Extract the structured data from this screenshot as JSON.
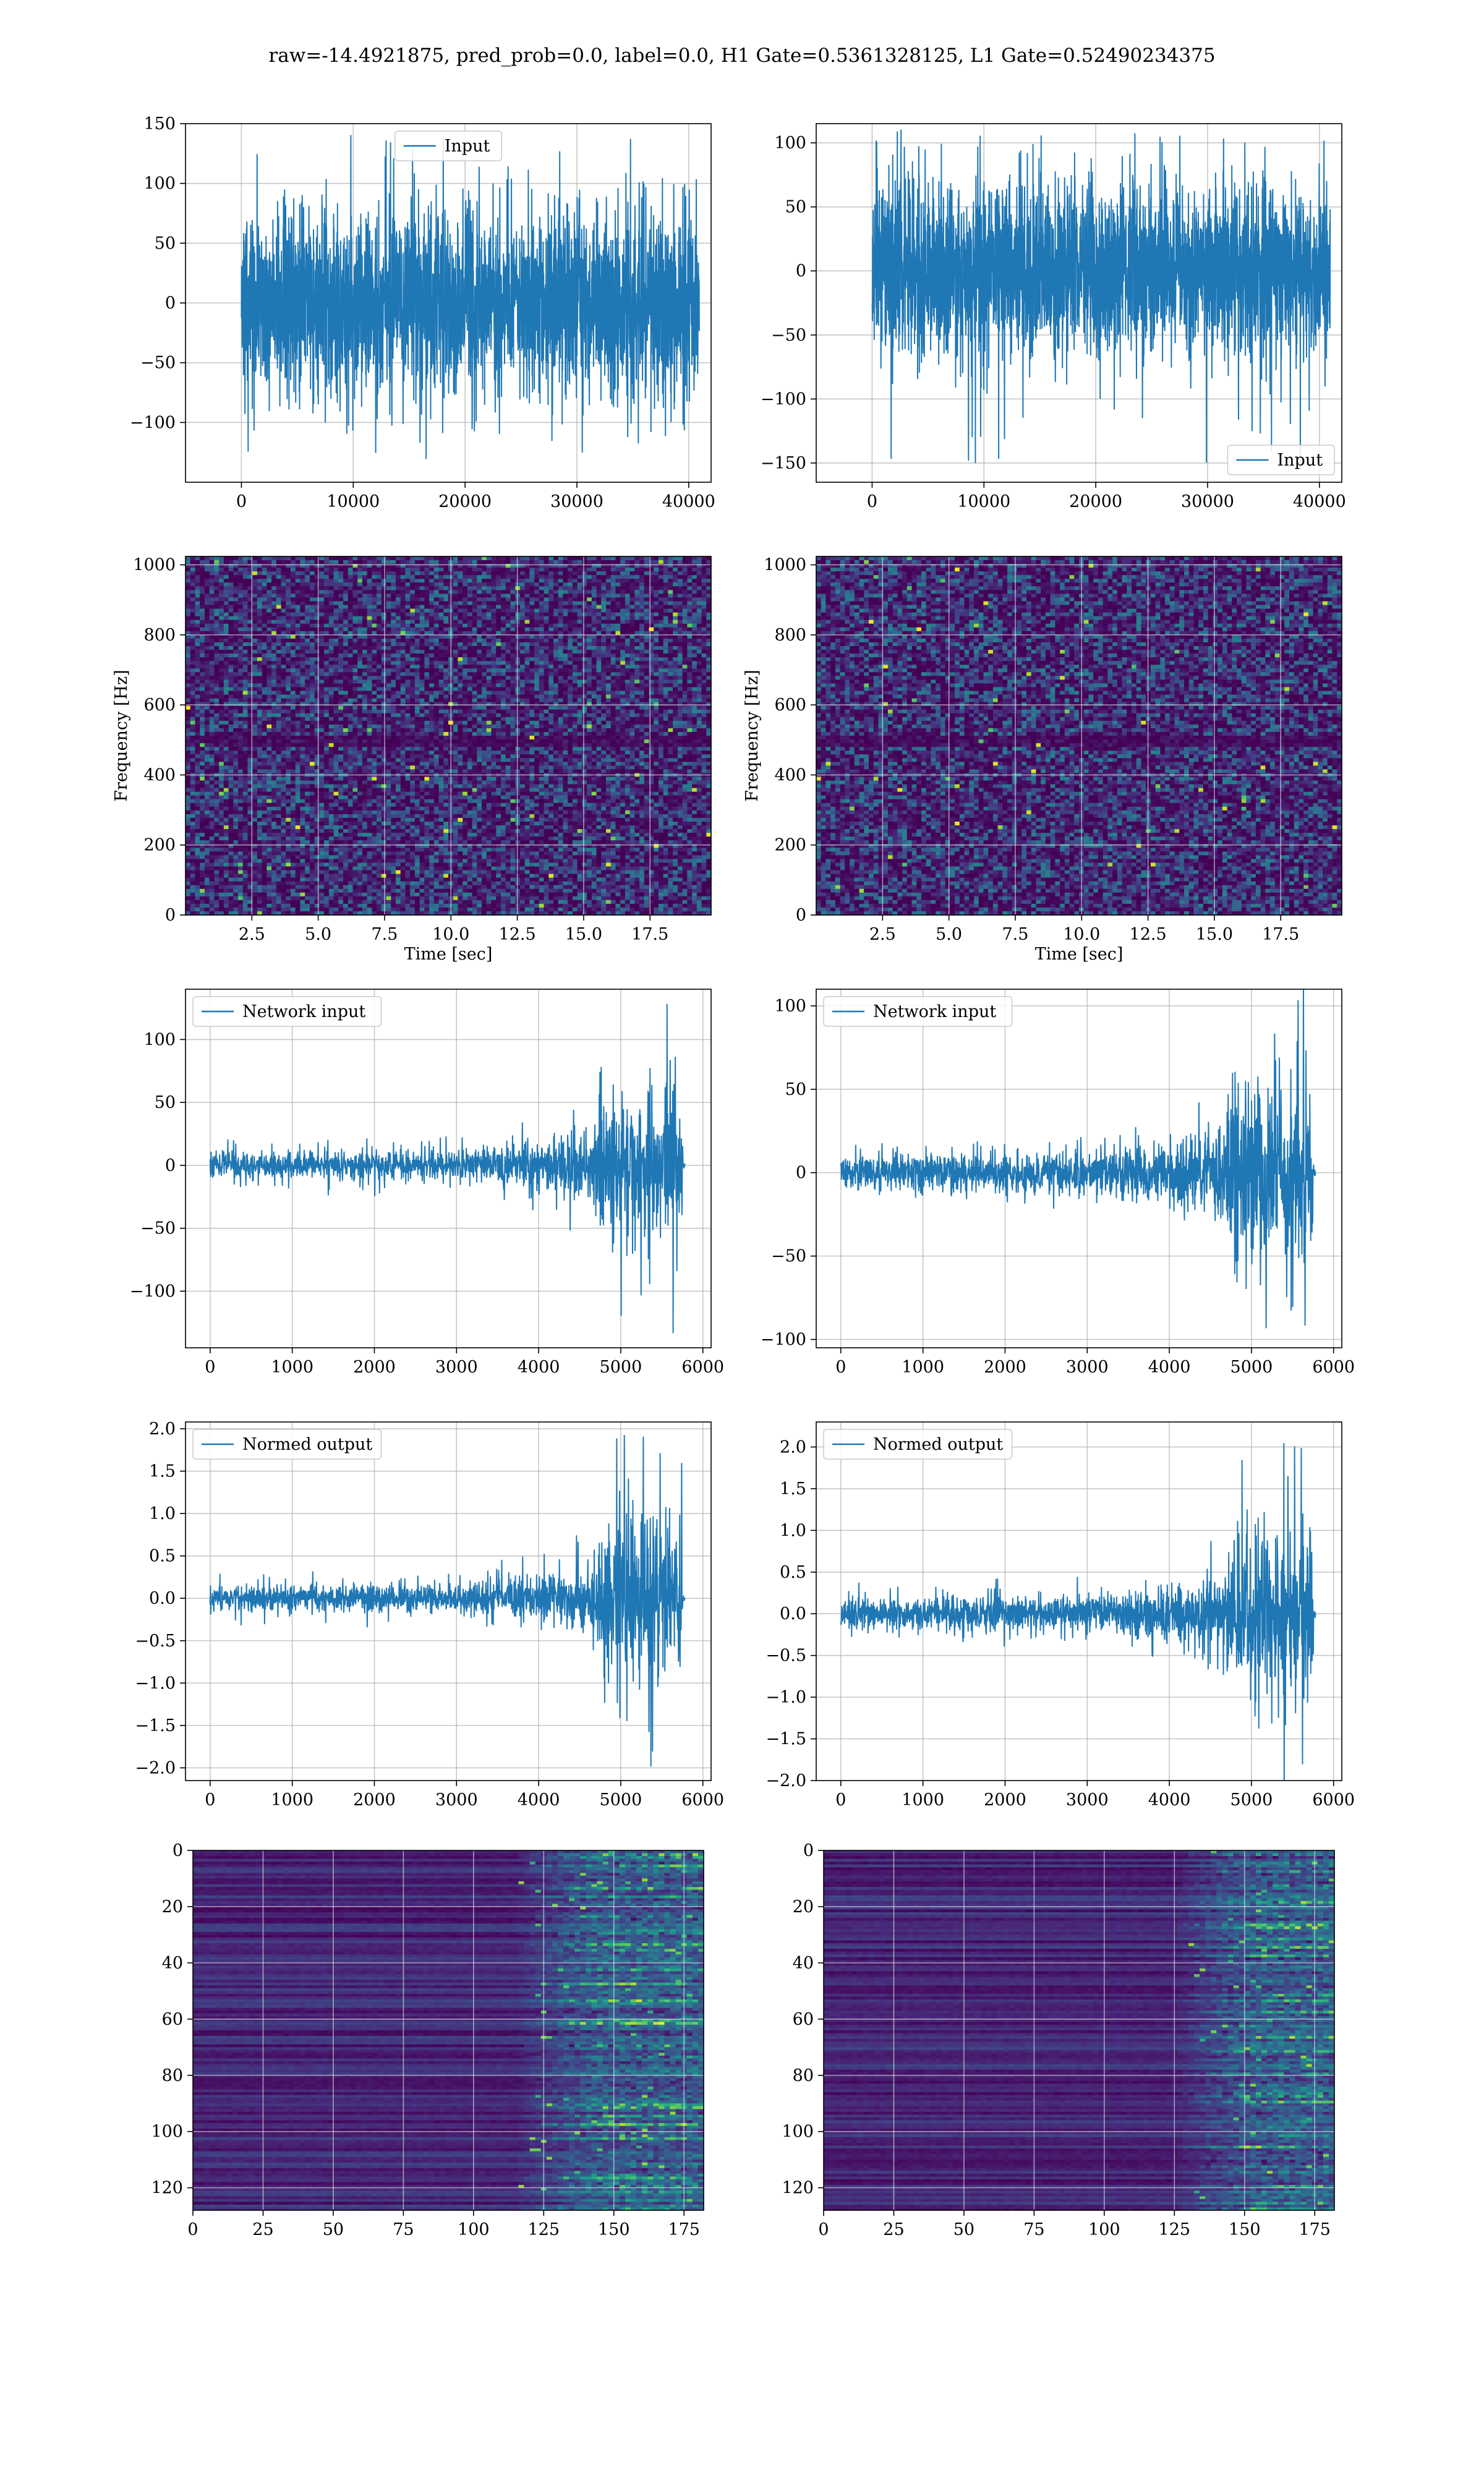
{
  "suptitle": "raw=-14.4921875, pred_prob=0.0, label=0.0, H1 Gate=0.5361328125, L1 Gate=0.52490234375",
  "colors": {
    "line": "#1f77b4",
    "grid": "#b0b0b0",
    "viridis": [
      "#440154",
      "#482878",
      "#3e4a89",
      "#31688e",
      "#26828e",
      "#1f9e89",
      "#35b779",
      "#6ece58",
      "#b5de2b",
      "#fde725"
    ]
  },
  "chart_data": [
    {
      "id": "raw-h1",
      "type": "line",
      "legend": {
        "label": "Input",
        "loc": "upper-center"
      },
      "xlim": [
        -5000,
        42000
      ],
      "ylim": [
        -150,
        150
      ],
      "xticks": [
        0,
        10000,
        20000,
        30000,
        40000
      ],
      "yticks": [
        -100,
        -50,
        0,
        50,
        100,
        150
      ],
      "grid": true,
      "signal": {
        "x_range": [
          0,
          40960
        ],
        "envelope": [
          {
            "x": 0,
            "amp": 60
          },
          {
            "x": 40960,
            "amp": 60
          }
        ],
        "peak_max": 140,
        "peak_min": -125,
        "points": 2600
      }
    },
    {
      "id": "raw-l1",
      "type": "line",
      "legend": {
        "label": "Input",
        "loc": "lower-right"
      },
      "xlim": [
        -5000,
        42000
      ],
      "ylim": [
        -165,
        115
      ],
      "xticks": [
        0,
        10000,
        20000,
        30000,
        40000
      ],
      "yticks": [
        -150,
        -100,
        -50,
        0,
        50,
        100
      ],
      "grid": true,
      "signal": {
        "x_range": [
          0,
          40960
        ],
        "envelope": [
          {
            "x": 0,
            "amp": 55
          },
          {
            "x": 40960,
            "amp": 55
          }
        ],
        "peak_max": 110,
        "peak_min": -155,
        "points": 2600
      }
    },
    {
      "id": "spec-h1",
      "type": "heatmap",
      "xlabel": "Time [sec]",
      "ylabel": "Frequency [Hz]",
      "xlim": [
        0,
        19.8
      ],
      "ylim": [
        0,
        1024
      ],
      "xticks": [
        2.5,
        5.0,
        7.5,
        10.0,
        12.5,
        15.0,
        17.5
      ],
      "yticks": [
        0,
        200,
        400,
        600,
        800,
        1000
      ],
      "grid": true,
      "pattern": "noise-spectrogram",
      "dark_band_hz": [
        480,
        510
      ]
    },
    {
      "id": "spec-l1",
      "type": "heatmap",
      "xlabel": "Time [sec]",
      "ylabel": "Frequency [Hz]",
      "xlim": [
        0,
        19.8
      ],
      "ylim": [
        0,
        1024
      ],
      "xticks": [
        2.5,
        5.0,
        7.5,
        10.0,
        12.5,
        15.0,
        17.5
      ],
      "yticks": [
        0,
        200,
        400,
        600,
        800,
        1000
      ],
      "grid": true,
      "pattern": "noise-spectrogram",
      "dark_band_hz": [
        480,
        510
      ]
    },
    {
      "id": "net-h1",
      "type": "line",
      "legend": {
        "label": "Network input",
        "loc": "upper-left"
      },
      "xlim": [
        -300,
        6100
      ],
      "ylim": [
        -145,
        140
      ],
      "xticks": [
        0,
        1000,
        2000,
        3000,
        4000,
        5000,
        6000
      ],
      "yticks": [
        -100,
        -50,
        0,
        50,
        100
      ],
      "grid": true,
      "signal": {
        "x_range": [
          0,
          5780
        ],
        "envelope": [
          {
            "x": 0,
            "amp": 8
          },
          {
            "x": 3000,
            "amp": 10
          },
          {
            "x": 4000,
            "amp": 16
          },
          {
            "x": 4650,
            "amp": 22
          },
          {
            "x": 4750,
            "amp": 50
          },
          {
            "x": 5740,
            "amp": 50
          },
          {
            "x": 5760,
            "amp": 2
          },
          {
            "x": 5780,
            "amp": 2
          }
        ],
        "peak_max": 128,
        "peak_min": -133,
        "points": 1500
      }
    },
    {
      "id": "net-l1",
      "type": "line",
      "legend": {
        "label": "Network input",
        "loc": "upper-left"
      },
      "xlim": [
        -300,
        6100
      ],
      "ylim": [
        -105,
        110
      ],
      "xticks": [
        0,
        1000,
        2000,
        3000,
        4000,
        5000,
        6000
      ],
      "yticks": [
        -100,
        -50,
        0,
        50,
        100
      ],
      "grid": true,
      "signal": {
        "x_range": [
          0,
          5780
        ],
        "envelope": [
          {
            "x": 0,
            "amp": 8
          },
          {
            "x": 3000,
            "amp": 10
          },
          {
            "x": 4000,
            "amp": 15
          },
          {
            "x": 4650,
            "amp": 22
          },
          {
            "x": 4750,
            "amp": 48
          },
          {
            "x": 5740,
            "amp": 48
          },
          {
            "x": 5760,
            "amp": 2
          },
          {
            "x": 5780,
            "amp": 2
          }
        ],
        "peak_max": 112,
        "peak_min": -93,
        "points": 1500
      }
    },
    {
      "id": "norm-h1",
      "type": "line",
      "legend": {
        "label": "Normed output",
        "loc": "upper-left"
      },
      "xlim": [
        -300,
        6100
      ],
      "ylim": [
        -2.15,
        2.08
      ],
      "xticks": [
        0,
        1000,
        2000,
        3000,
        4000,
        5000,
        6000
      ],
      "yticks": [
        -2.0,
        -1.5,
        -1.0,
        -0.5,
        0.0,
        0.5,
        1.0,
        1.5,
        2.0
      ],
      "grid": true,
      "signal": {
        "x_range": [
          0,
          5780
        ],
        "envelope": [
          {
            "x": 0,
            "amp": 0.12
          },
          {
            "x": 3000,
            "amp": 0.14
          },
          {
            "x": 4000,
            "amp": 0.22
          },
          {
            "x": 4650,
            "amp": 0.32
          },
          {
            "x": 4750,
            "amp": 0.75
          },
          {
            "x": 5740,
            "amp": 0.75
          },
          {
            "x": 5760,
            "amp": 0.03
          },
          {
            "x": 5780,
            "amp": 0.03
          }
        ],
        "peak_max": 1.92,
        "peak_min": -1.98,
        "points": 1500
      }
    },
    {
      "id": "norm-l1",
      "type": "line",
      "legend": {
        "label": "Normed output",
        "loc": "upper-left"
      },
      "xlim": [
        -300,
        6100
      ],
      "ylim": [
        -2.0,
        2.3
      ],
      "xticks": [
        0,
        1000,
        2000,
        3000,
        4000,
        5000,
        6000
      ],
      "yticks": [
        -2.0,
        -1.5,
        -1.0,
        -0.5,
        0.0,
        0.5,
        1.0,
        1.5,
        2.0
      ],
      "grid": true,
      "signal": {
        "x_range": [
          0,
          5780
        ],
        "envelope": [
          {
            "x": 0,
            "amp": 0.15
          },
          {
            "x": 3000,
            "amp": 0.17
          },
          {
            "x": 4000,
            "amp": 0.26
          },
          {
            "x": 4650,
            "amp": 0.38
          },
          {
            "x": 4750,
            "amp": 0.85
          },
          {
            "x": 5740,
            "amp": 0.85
          },
          {
            "x": 5760,
            "amp": 0.04
          },
          {
            "x": 5780,
            "amp": 0.04
          }
        ],
        "peak_max": 2.2,
        "peak_min": -1.8,
        "points": 1500
      }
    },
    {
      "id": "feat-h1",
      "type": "heatmap",
      "xlim": [
        0,
        182
      ],
      "ylim": [
        128,
        0
      ],
      "xticks": [
        0,
        25,
        50,
        75,
        100,
        125,
        150,
        175
      ],
      "yticks": [
        0,
        20,
        40,
        60,
        80,
        100,
        120
      ],
      "grid": true,
      "pattern": "feature-map",
      "activity_onset_x": 115
    },
    {
      "id": "feat-l1",
      "type": "heatmap",
      "xlim": [
        0,
        182
      ],
      "ylim": [
        128,
        0
      ],
      "xticks": [
        0,
        25,
        50,
        75,
        100,
        125,
        150,
        175
      ],
      "yticks": [
        0,
        20,
        40,
        60,
        80,
        100,
        120
      ],
      "grid": true,
      "pattern": "feature-map",
      "activity_onset_x": 125
    }
  ]
}
